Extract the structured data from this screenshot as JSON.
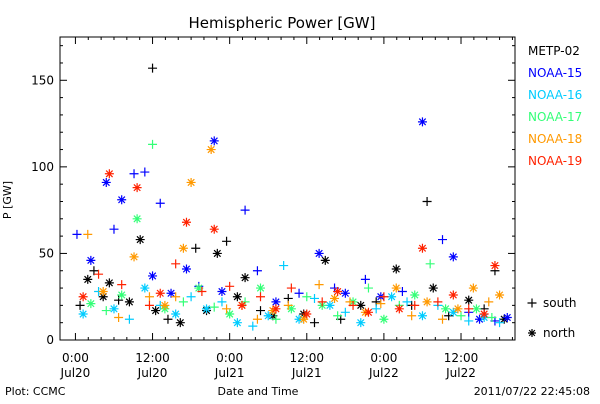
{
  "chart_data": {
    "type": "scatter",
    "title": "Hemispheric Power [GW]",
    "xlabel": "Date and Time",
    "ylabel": "P [GW]",
    "ylim": [
      0,
      175
    ],
    "xlim": [
      -0.1,
      2.85
    ],
    "yticks": [
      0,
      50,
      100,
      150
    ],
    "xticks": [
      {
        "x": 0.0,
        "time": "0:00",
        "date": "Jul20"
      },
      {
        "x": 0.5,
        "time": "12:00",
        "date": "Jul20"
      },
      {
        "x": 1.0,
        "time": "0:00",
        "date": "Jul21"
      },
      {
        "x": 1.5,
        "time": "12:00",
        "date": "Jul21"
      },
      {
        "x": 2.0,
        "time": "0:00",
        "date": "Jul22"
      },
      {
        "x": 2.5,
        "time": "12:00",
        "date": "Jul22"
      }
    ],
    "x_units": "days since 2011-07-20 00:00",
    "grid": false,
    "legend_position": "right",
    "footer": {
      "left": "Plot: CCMC",
      "right": "2011/07/22 22:45:08"
    },
    "markers_legend": [
      {
        "symbol": "+",
        "label": "south"
      },
      {
        "symbol": "*",
        "label": "north"
      }
    ],
    "series": [
      {
        "name": "METP-02",
        "color": "#000000",
        "points": [
          [
            0.03,
            20,
            "+"
          ],
          [
            0.08,
            35,
            "*"
          ],
          [
            0.12,
            40,
            "+"
          ],
          [
            0.18,
            25,
            "*"
          ],
          [
            0.22,
            33,
            "*"
          ],
          [
            0.28,
            23,
            "+"
          ],
          [
            0.35,
            22,
            "*"
          ],
          [
            0.42,
            58,
            "*"
          ],
          [
            0.5,
            157,
            "+"
          ],
          [
            0.52,
            17,
            "*"
          ],
          [
            0.6,
            12,
            "+"
          ],
          [
            0.68,
            10,
            "*"
          ],
          [
            0.78,
            53,
            "+"
          ],
          [
            0.85,
            17,
            "*"
          ],
          [
            0.92,
            50,
            "*"
          ],
          [
            0.98,
            57,
            "+"
          ],
          [
            1.05,
            25,
            "*"
          ],
          [
            1.1,
            36,
            "*"
          ],
          [
            1.2,
            17,
            "+"
          ],
          [
            1.28,
            14,
            "*"
          ],
          [
            1.38,
            24,
            "+"
          ],
          [
            1.48,
            15,
            "*"
          ],
          [
            1.55,
            10,
            "+"
          ],
          [
            1.62,
            46,
            "*"
          ],
          [
            1.72,
            12,
            "+"
          ],
          [
            1.85,
            20,
            "*"
          ],
          [
            1.95,
            22,
            "+"
          ],
          [
            2.08,
            41,
            "*"
          ],
          [
            2.18,
            20,
            "+"
          ],
          [
            2.28,
            80,
            "+"
          ],
          [
            2.32,
            30,
            "*"
          ],
          [
            2.42,
            14,
            "+"
          ],
          [
            2.55,
            23,
            "*"
          ],
          [
            2.65,
            18,
            "+"
          ],
          [
            2.72,
            40,
            "+"
          ],
          [
            2.78,
            12,
            "*"
          ]
        ]
      },
      {
        "name": "NOAA-15",
        "color": "#0000ff",
        "points": [
          [
            0.01,
            61,
            "+"
          ],
          [
            0.1,
            46,
            "*"
          ],
          [
            0.2,
            91,
            "*"
          ],
          [
            0.25,
            64,
            "+"
          ],
          [
            0.3,
            81,
            "*"
          ],
          [
            0.38,
            96,
            "+"
          ],
          [
            0.45,
            97,
            "+"
          ],
          [
            0.5,
            37,
            "*"
          ],
          [
            0.55,
            79,
            "+"
          ],
          [
            0.62,
            27,
            "*"
          ],
          [
            0.72,
            41,
            "*"
          ],
          [
            0.8,
            31,
            "+"
          ],
          [
            0.9,
            115,
            "*"
          ],
          [
            0.95,
            28,
            "*"
          ],
          [
            1.1,
            75,
            "+"
          ],
          [
            1.18,
            40,
            "+"
          ],
          [
            1.3,
            22,
            "*"
          ],
          [
            1.45,
            27,
            "+"
          ],
          [
            1.58,
            50,
            "*"
          ],
          [
            1.68,
            30,
            "+"
          ],
          [
            1.75,
            27,
            "*"
          ],
          [
            1.88,
            35,
            "+"
          ],
          [
            1.98,
            25,
            "*"
          ],
          [
            2.12,
            28,
            "+"
          ],
          [
            2.25,
            126,
            "*"
          ],
          [
            2.38,
            58,
            "+"
          ],
          [
            2.45,
            48,
            "*"
          ],
          [
            2.55,
            16,
            "+"
          ],
          [
            2.62,
            12,
            "*"
          ],
          [
            2.72,
            11,
            "+"
          ],
          [
            2.8,
            13,
            "*"
          ]
        ]
      },
      {
        "name": "NOAA-16",
        "color": "#00ccff",
        "points": [
          [
            0.05,
            15,
            "*"
          ],
          [
            0.15,
            28,
            "+"
          ],
          [
            0.25,
            18,
            "*"
          ],
          [
            0.35,
            12,
            "+"
          ],
          [
            0.45,
            30,
            "*"
          ],
          [
            0.55,
            20,
            "+"
          ],
          [
            0.65,
            15,
            "*"
          ],
          [
            0.75,
            25,
            "+"
          ],
          [
            0.85,
            18,
            "*"
          ],
          [
            0.95,
            22,
            "+"
          ],
          [
            1.05,
            10,
            "*"
          ],
          [
            1.15,
            8,
            "+"
          ],
          [
            1.25,
            14,
            "*"
          ],
          [
            1.35,
            43,
            "+"
          ],
          [
            1.45,
            12,
            "*"
          ],
          [
            1.55,
            24,
            "+"
          ],
          [
            1.65,
            20,
            "*"
          ],
          [
            1.75,
            16,
            "+"
          ],
          [
            1.85,
            10,
            "*"
          ],
          [
            1.95,
            18,
            "+"
          ],
          [
            2.05,
            25,
            "*"
          ],
          [
            2.15,
            22,
            "+"
          ],
          [
            2.25,
            14,
            "*"
          ],
          [
            2.35,
            20,
            "+"
          ],
          [
            2.45,
            16,
            "*"
          ],
          [
            2.55,
            11,
            "+"
          ],
          [
            2.65,
            13,
            "*"
          ],
          [
            2.75,
            10,
            "+"
          ]
        ]
      },
      {
        "name": "NOAA-17",
        "color": "#33ff77",
        "points": [
          [
            0.1,
            21,
            "*"
          ],
          [
            0.2,
            17,
            "+"
          ],
          [
            0.3,
            26,
            "*"
          ],
          [
            0.4,
            70,
            "*"
          ],
          [
            0.5,
            113,
            "+"
          ],
          [
            0.58,
            18,
            "*"
          ],
          [
            0.7,
            22,
            "+"
          ],
          [
            0.8,
            30,
            "*"
          ],
          [
            0.9,
            19,
            "+"
          ],
          [
            1.0,
            15,
            "*"
          ],
          [
            1.1,
            22,
            "+"
          ],
          [
            1.2,
            30,
            "*"
          ],
          [
            1.3,
            12,
            "+"
          ],
          [
            1.4,
            18,
            "*"
          ],
          [
            1.5,
            25,
            "+"
          ],
          [
            1.6,
            20,
            "*"
          ],
          [
            1.7,
            14,
            "+"
          ],
          [
            1.8,
            22,
            "*"
          ],
          [
            1.9,
            30,
            "+"
          ],
          [
            2.0,
            12,
            "*"
          ],
          [
            2.1,
            20,
            "+"
          ],
          [
            2.2,
            26,
            "*"
          ],
          [
            2.3,
            44,
            "+"
          ],
          [
            2.4,
            18,
            "*"
          ],
          [
            2.5,
            14,
            "+"
          ],
          [
            2.6,
            18,
            "*"
          ],
          [
            2.7,
            13,
            "+"
          ]
        ]
      },
      {
        "name": "NOAA-18",
        "color": "#ff9900",
        "points": [
          [
            0.08,
            61,
            "+"
          ],
          [
            0.18,
            28,
            "*"
          ],
          [
            0.28,
            13,
            "+"
          ],
          [
            0.38,
            48,
            "*"
          ],
          [
            0.48,
            25,
            "+"
          ],
          [
            0.58,
            20,
            "*"
          ],
          [
            0.65,
            25,
            "+"
          ],
          [
            0.7,
            53,
            "*"
          ],
          [
            0.75,
            91,
            "*"
          ],
          [
            0.88,
            110,
            "*"
          ],
          [
            0.98,
            18,
            "+"
          ],
          [
            1.08,
            20,
            "*"
          ],
          [
            1.18,
            12,
            "+"
          ],
          [
            1.28,
            17,
            "*"
          ],
          [
            1.38,
            20,
            "+"
          ],
          [
            1.48,
            12,
            "*"
          ],
          [
            1.58,
            32,
            "+"
          ],
          [
            1.68,
            24,
            "*"
          ],
          [
            1.78,
            22,
            "+"
          ],
          [
            1.88,
            16,
            "*"
          ],
          [
            1.98,
            21,
            "+"
          ],
          [
            2.08,
            30,
            "*"
          ],
          [
            2.18,
            14,
            "+"
          ],
          [
            2.28,
            22,
            "*"
          ],
          [
            2.38,
            12,
            "+"
          ],
          [
            2.48,
            18,
            "*"
          ],
          [
            2.58,
            30,
            "*"
          ],
          [
            2.68,
            22,
            "+"
          ],
          [
            2.75,
            26,
            "*"
          ]
        ]
      },
      {
        "name": "NOAA-19",
        "color": "#ff2200",
        "points": [
          [
            0.05,
            25,
            "*"
          ],
          [
            0.15,
            38,
            "+"
          ],
          [
            0.22,
            96,
            "*"
          ],
          [
            0.3,
            32,
            "+"
          ],
          [
            0.4,
            88,
            "*"
          ],
          [
            0.48,
            20,
            "+"
          ],
          [
            0.55,
            27,
            "*"
          ],
          [
            0.65,
            44,
            "+"
          ],
          [
            0.72,
            68,
            "*"
          ],
          [
            0.82,
            28,
            "+"
          ],
          [
            0.9,
            64,
            "*"
          ],
          [
            1.0,
            31,
            "+"
          ],
          [
            1.08,
            20,
            "*"
          ],
          [
            1.2,
            25,
            "+"
          ],
          [
            1.3,
            18,
            "*"
          ],
          [
            1.4,
            30,
            "+"
          ],
          [
            1.5,
            15,
            "*"
          ],
          [
            1.6,
            22,
            "+"
          ],
          [
            1.7,
            28,
            "*"
          ],
          [
            1.8,
            20,
            "+"
          ],
          [
            1.9,
            16,
            "*"
          ],
          [
            2.0,
            25,
            "+"
          ],
          [
            2.1,
            18,
            "*"
          ],
          [
            2.2,
            20,
            "+"
          ],
          [
            2.25,
            53,
            "*"
          ],
          [
            2.35,
            22,
            "+"
          ],
          [
            2.45,
            26,
            "*"
          ],
          [
            2.55,
            18,
            "+"
          ],
          [
            2.65,
            15,
            "*"
          ],
          [
            2.72,
            43,
            "*"
          ]
        ]
      }
    ]
  }
}
